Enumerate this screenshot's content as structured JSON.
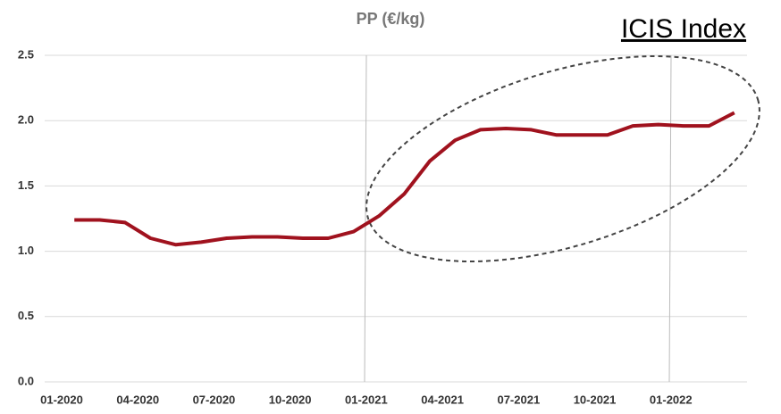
{
  "chart_data": {
    "type": "line",
    "title": "PP (€/kg)",
    "annotation": "ICIS Index",
    "categories": [
      "01-2020",
      null,
      null,
      "04-2020",
      null,
      null,
      "07-2020",
      null,
      null,
      "10-2020",
      null,
      null,
      "01-2021",
      null,
      null,
      "04-2021",
      null,
      null,
      "07-2021",
      null,
      null,
      "10-2021",
      null,
      null,
      "01-2022",
      null,
      null
    ],
    "series": [
      {
        "name": "PP",
        "color": "#a0121e",
        "values": [
          1.24,
          1.24,
          1.22,
          1.1,
          1.05,
          1.07,
          1.1,
          1.11,
          1.11,
          1.1,
          1.1,
          1.15,
          1.27,
          1.44,
          1.69,
          1.85,
          1.93,
          1.94,
          1.93,
          1.89,
          1.89,
          1.89,
          1.96,
          1.97,
          1.96,
          1.96,
          2.06
        ]
      }
    ],
    "ylim": [
      0,
      2.5
    ],
    "yticks": [
      {
        "value": 0,
        "label": "0.0"
      },
      0.5,
      {
        "value": 1,
        "label": "1.0"
      },
      1.5,
      {
        "value": 2,
        "label": "2.0"
      },
      2.5
    ],
    "grid": true
  }
}
